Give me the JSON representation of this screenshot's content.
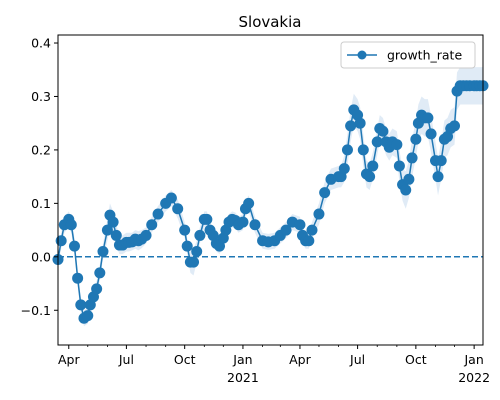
{
  "chart_data": {
    "type": "line",
    "title": "Slovakia",
    "xlabel": "",
    "ylabel": "",
    "x_range": [
      "2020-03-15",
      "2022-01-15"
    ],
    "ylim": [
      -0.165,
      0.415
    ],
    "grid": false,
    "legend_position": "top-right",
    "x_tick_labels": [
      {
        "date": "2020-04-01",
        "label": "Apr",
        "sub": ""
      },
      {
        "date": "2020-07-01",
        "label": "Jul",
        "sub": ""
      },
      {
        "date": "2020-10-01",
        "label": "Oct",
        "sub": ""
      },
      {
        "date": "2021-01-01",
        "label": "Jan",
        "sub": "2021"
      },
      {
        "date": "2021-04-01",
        "label": "Apr",
        "sub": ""
      },
      {
        "date": "2021-07-01",
        "label": "Jul",
        "sub": ""
      },
      {
        "date": "2021-10-01",
        "label": "Oct",
        "sub": ""
      },
      {
        "date": "2022-01-01",
        "label": "Jan",
        "sub": "2022"
      }
    ],
    "y_ticks": [
      -0.1,
      0.0,
      0.1,
      0.2,
      0.3,
      0.4
    ],
    "y_tick_labels": [
      "−0.1",
      "0.0",
      "0.1",
      "0.2",
      "0.3",
      "0.4"
    ],
    "reference_line": {
      "y": 0.0,
      "style": "dashed"
    },
    "colors": {
      "series": "#1f77b4",
      "band": "#c6dbef"
    },
    "series": [
      {
        "name": "growth_rate",
        "marker": "circle",
        "x": [
          "2020-03-15",
          "2020-03-20",
          "2020-03-25",
          "2020-04-01",
          "2020-04-05",
          "2020-04-10",
          "2020-04-15",
          "2020-04-20",
          "2020-04-25",
          "2020-05-01",
          "2020-05-05",
          "2020-05-10",
          "2020-05-15",
          "2020-05-20",
          "2020-05-25",
          "2020-06-01",
          "2020-06-05",
          "2020-06-10",
          "2020-06-15",
          "2020-06-20",
          "2020-06-25",
          "2020-07-01",
          "2020-07-05",
          "2020-07-10",
          "2020-07-15",
          "2020-07-20",
          "2020-07-25",
          "2020-08-01",
          "2020-08-10",
          "2020-08-20",
          "2020-09-01",
          "2020-09-10",
          "2020-09-20",
          "2020-10-01",
          "2020-10-05",
          "2020-10-10",
          "2020-10-15",
          "2020-10-20",
          "2020-10-25",
          "2020-11-01",
          "2020-11-05",
          "2020-11-10",
          "2020-11-15",
          "2020-11-20",
          "2020-11-25",
          "2020-12-01",
          "2020-12-05",
          "2020-12-10",
          "2020-12-15",
          "2020-12-20",
          "2020-12-25",
          "2021-01-01",
          "2021-01-05",
          "2021-01-10",
          "2021-01-20",
          "2021-02-01",
          "2021-02-10",
          "2021-02-20",
          "2021-03-01",
          "2021-03-10",
          "2021-03-20",
          "2021-04-01",
          "2021-04-05",
          "2021-04-10",
          "2021-04-15",
          "2021-04-20",
          "2021-05-01",
          "2021-05-10",
          "2021-05-20",
          "2021-06-01",
          "2021-06-05",
          "2021-06-10",
          "2021-06-15",
          "2021-06-20",
          "2021-06-25",
          "2021-07-01",
          "2021-07-05",
          "2021-07-10",
          "2021-07-15",
          "2021-07-20",
          "2021-07-25",
          "2021-08-01",
          "2021-08-05",
          "2021-08-10",
          "2021-08-15",
          "2021-08-20",
          "2021-08-25",
          "2021-09-01",
          "2021-09-05",
          "2021-09-10",
          "2021-09-15",
          "2021-09-20",
          "2021-09-25",
          "2021-10-01",
          "2021-10-05",
          "2021-10-10",
          "2021-10-15",
          "2021-10-20",
          "2021-10-25",
          "2021-11-01",
          "2021-11-05",
          "2021-11-10",
          "2021-11-15",
          "2021-11-20",
          "2021-11-25",
          "2021-12-01",
          "2021-12-05",
          "2021-12-10",
          "2021-12-15",
          "2021-12-20",
          "2021-12-25",
          "2022-01-01",
          "2022-01-05",
          "2022-01-10",
          "2022-01-15"
        ],
        "y": [
          -0.005,
          0.03,
          0.06,
          0.07,
          0.06,
          0.02,
          -0.04,
          -0.09,
          -0.115,
          -0.11,
          -0.09,
          -0.075,
          -0.06,
          -0.03,
          0.01,
          0.05,
          0.078,
          0.065,
          0.04,
          0.022,
          0.022,
          0.027,
          0.027,
          0.028,
          0.033,
          0.03,
          0.033,
          0.04,
          0.06,
          0.08,
          0.1,
          0.11,
          0.09,
          0.05,
          0.02,
          -0.01,
          -0.01,
          0.01,
          0.04,
          0.07,
          0.07,
          0.05,
          0.04,
          0.025,
          0.02,
          0.035,
          0.05,
          0.065,
          0.07,
          0.068,
          0.06,
          0.065,
          0.09,
          0.1,
          0.06,
          0.03,
          0.028,
          0.03,
          0.04,
          0.05,
          0.065,
          0.06,
          0.04,
          0.03,
          0.03,
          0.05,
          0.08,
          0.12,
          0.145,
          0.15,
          0.15,
          0.165,
          0.2,
          0.245,
          0.275,
          0.265,
          0.25,
          0.2,
          0.155,
          0.15,
          0.17,
          0.215,
          0.24,
          0.235,
          0.215,
          0.205,
          0.215,
          0.21,
          0.17,
          0.135,
          0.125,
          0.145,
          0.185,
          0.22,
          0.25,
          0.265,
          0.26,
          0.26,
          0.23,
          0.18,
          0.15,
          0.18,
          0.22,
          0.225,
          0.24,
          0.245,
          0.31,
          0.32,
          0.32,
          0.32,
          0.32,
          0.32,
          0.32,
          0.32,
          0.32
        ],
        "band_lower": [
          -0.015,
          0.015,
          0.045,
          0.055,
          0.045,
          0.005,
          -0.055,
          -0.105,
          -0.13,
          -0.125,
          -0.105,
          -0.09,
          -0.075,
          -0.045,
          -0.005,
          0.03,
          0.055,
          0.045,
          0.02,
          0.005,
          0.005,
          0.01,
          0.01,
          0.012,
          0.015,
          0.012,
          0.016,
          0.025,
          0.045,
          0.065,
          0.085,
          0.095,
          0.072,
          0.035,
          0.005,
          -0.03,
          -0.035,
          -0.01,
          0.025,
          0.055,
          0.055,
          0.035,
          0.025,
          0.01,
          0.005,
          0.02,
          0.035,
          0.05,
          0.055,
          0.053,
          0.045,
          0.05,
          0.075,
          0.085,
          0.045,
          0.015,
          0.013,
          0.015,
          0.025,
          0.035,
          0.05,
          0.045,
          0.025,
          0.015,
          0.015,
          0.035,
          0.06,
          0.1,
          0.125,
          0.13,
          0.13,
          0.14,
          0.17,
          0.215,
          0.245,
          0.235,
          0.22,
          0.17,
          0.13,
          0.125,
          0.145,
          0.19,
          0.215,
          0.21,
          0.19,
          0.18,
          0.19,
          0.185,
          0.14,
          0.105,
          0.09,
          0.11,
          0.15,
          0.185,
          0.215,
          0.23,
          0.225,
          0.225,
          0.195,
          0.145,
          0.115,
          0.145,
          0.185,
          0.19,
          0.205,
          0.21,
          0.275,
          0.285,
          0.285,
          0.285,
          0.285,
          0.285,
          0.285,
          0.285,
          0.285
        ],
        "band_upper": [
          0.005,
          0.045,
          0.075,
          0.085,
          0.075,
          0.035,
          -0.025,
          -0.075,
          -0.1,
          -0.095,
          -0.075,
          -0.06,
          -0.045,
          -0.015,
          0.025,
          0.07,
          0.1,
          0.085,
          0.06,
          0.04,
          0.04,
          0.045,
          0.045,
          0.045,
          0.05,
          0.048,
          0.05,
          0.055,
          0.075,
          0.095,
          0.115,
          0.125,
          0.108,
          0.065,
          0.035,
          0.01,
          0.015,
          0.03,
          0.055,
          0.085,
          0.085,
          0.065,
          0.055,
          0.04,
          0.035,
          0.05,
          0.065,
          0.08,
          0.085,
          0.083,
          0.075,
          0.08,
          0.105,
          0.115,
          0.075,
          0.045,
          0.043,
          0.045,
          0.055,
          0.065,
          0.08,
          0.075,
          0.055,
          0.045,
          0.045,
          0.065,
          0.1,
          0.14,
          0.165,
          0.17,
          0.17,
          0.19,
          0.23,
          0.275,
          0.305,
          0.295,
          0.28,
          0.23,
          0.18,
          0.175,
          0.195,
          0.24,
          0.265,
          0.26,
          0.24,
          0.23,
          0.24,
          0.235,
          0.2,
          0.165,
          0.16,
          0.18,
          0.22,
          0.255,
          0.285,
          0.3,
          0.295,
          0.295,
          0.265,
          0.215,
          0.185,
          0.215,
          0.255,
          0.26,
          0.275,
          0.28,
          0.345,
          0.355,
          0.355,
          0.355,
          0.355,
          0.355,
          0.355,
          0.355,
          0.355
        ]
      }
    ]
  }
}
